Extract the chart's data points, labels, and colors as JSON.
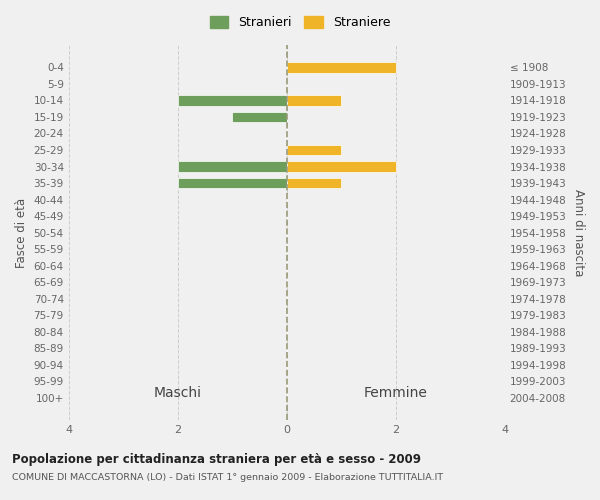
{
  "age_groups": [
    "0-4",
    "5-9",
    "10-14",
    "15-19",
    "20-24",
    "25-29",
    "30-34",
    "35-39",
    "40-44",
    "45-49",
    "50-54",
    "55-59",
    "60-64",
    "65-69",
    "70-74",
    "75-79",
    "80-84",
    "85-89",
    "90-94",
    "95-99",
    "100+"
  ],
  "birth_years": [
    "2004-2008",
    "1999-2003",
    "1994-1998",
    "1989-1993",
    "1984-1988",
    "1979-1983",
    "1974-1978",
    "1969-1973",
    "1964-1968",
    "1959-1963",
    "1954-1958",
    "1949-1953",
    "1944-1948",
    "1939-1943",
    "1934-1938",
    "1929-1933",
    "1924-1928",
    "1919-1923",
    "1914-1918",
    "1909-1913",
    "≤ 1908"
  ],
  "maschi": [
    0,
    0,
    2,
    1,
    0,
    0,
    2,
    2,
    0,
    0,
    0,
    0,
    0,
    0,
    0,
    0,
    0,
    0,
    0,
    0,
    0
  ],
  "femmine": [
    2,
    0,
    1,
    0,
    0,
    1,
    2,
    1,
    0,
    0,
    0,
    0,
    0,
    0,
    0,
    0,
    0,
    0,
    0,
    0,
    0
  ],
  "color_maschi": "#6d9e5b",
  "color_femmine": "#f0b429",
  "title_main": "Popolazione per cittadinanza straniera per età e sesso - 2009",
  "title_sub": "COMUNE DI MACCASTORNA (LO) - Dati ISTAT 1° gennaio 2009 - Elaborazione TUTTITALIA.IT",
  "xlabel_left": "Maschi",
  "xlabel_right": "Femmine",
  "ylabel_left": "Fasce di età",
  "ylabel_right": "Anni di nascita",
  "legend_maschi": "Stranieri",
  "legend_femmine": "Straniere",
  "xlim": 4,
  "background_color": "#f0f0f0",
  "grid_color": "#cccccc",
  "bar_edge_color": "white"
}
